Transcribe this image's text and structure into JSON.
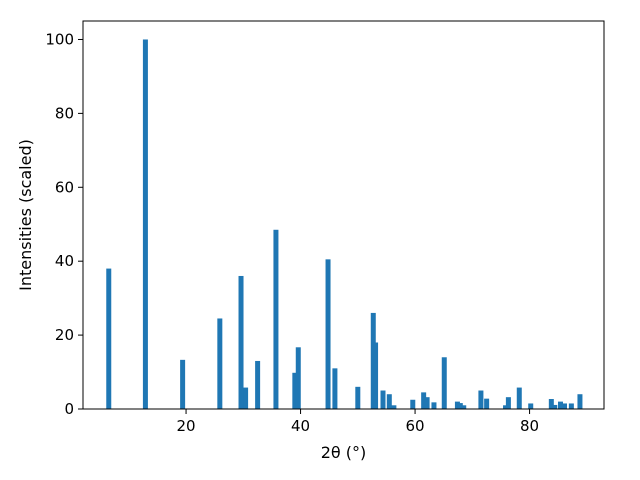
{
  "chart_data": {
    "type": "bar",
    "xlabel": "2θ (°)",
    "ylabel": "Intensities (scaled)",
    "xlim": [
      2.0,
      93.0
    ],
    "ylim": [
      0,
      105
    ],
    "xticks": [
      20,
      40,
      60,
      80
    ],
    "yticks": [
      0,
      20,
      40,
      60,
      80,
      100
    ],
    "grid": false,
    "bar_color": "#1f77b4",
    "bars": [
      {
        "x": 6.5,
        "y": 38.0
      },
      {
        "x": 12.9,
        "y": 100.0
      },
      {
        "x": 19.4,
        "y": 13.3
      },
      {
        "x": 25.9,
        "y": 24.5
      },
      {
        "x": 29.6,
        "y": 36.0
      },
      {
        "x": 30.4,
        "y": 5.8
      },
      {
        "x": 32.5,
        "y": 13.0
      },
      {
        "x": 35.7,
        "y": 48.5
      },
      {
        "x": 39.0,
        "y": 9.8
      },
      {
        "x": 39.6,
        "y": 16.7
      },
      {
        "x": 44.8,
        "y": 40.5
      },
      {
        "x": 46.0,
        "y": 11.0
      },
      {
        "x": 50.0,
        "y": 6.0
      },
      {
        "x": 52.7,
        "y": 26.0
      },
      {
        "x": 53.1,
        "y": 18.0
      },
      {
        "x": 54.4,
        "y": 5.0
      },
      {
        "x": 55.5,
        "y": 4.0
      },
      {
        "x": 56.3,
        "y": 1.0
      },
      {
        "x": 59.6,
        "y": 2.5
      },
      {
        "x": 61.5,
        "y": 4.5
      },
      {
        "x": 62.1,
        "y": 3.2
      },
      {
        "x": 63.3,
        "y": 1.8
      },
      {
        "x": 65.1,
        "y": 14.0
      },
      {
        "x": 67.4,
        "y": 2.0
      },
      {
        "x": 67.9,
        "y": 1.6
      },
      {
        "x": 68.5,
        "y": 1.0
      },
      {
        "x": 71.5,
        "y": 5.0
      },
      {
        "x": 72.5,
        "y": 2.8
      },
      {
        "x": 75.8,
        "y": 1.0
      },
      {
        "x": 76.3,
        "y": 3.2
      },
      {
        "x": 78.2,
        "y": 5.8
      },
      {
        "x": 80.2,
        "y": 1.5
      },
      {
        "x": 83.8,
        "y": 2.7
      },
      {
        "x": 84.4,
        "y": 1.1
      },
      {
        "x": 85.4,
        "y": 2.0
      },
      {
        "x": 86.1,
        "y": 1.5
      },
      {
        "x": 87.3,
        "y": 1.5
      },
      {
        "x": 88.8,
        "y": 4.0
      }
    ]
  }
}
